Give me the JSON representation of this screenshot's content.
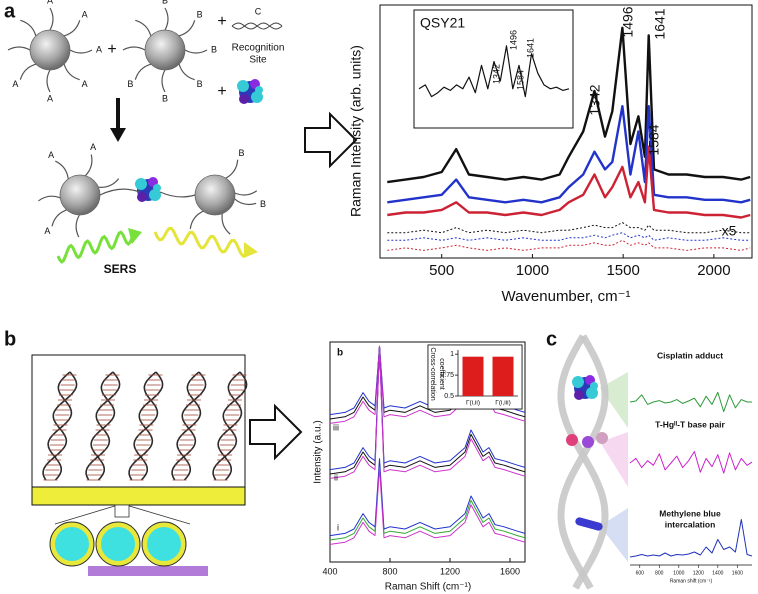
{
  "figure": {
    "panel_labels": [
      "a",
      "b",
      "c"
    ],
    "panel_a_diagram": {
      "particle_a_labels": [
        "A",
        "A",
        "A",
        "A",
        "A",
        "A"
      ],
      "particle_b_labels": [
        "B",
        "B",
        "B",
        "B",
        "B",
        "B"
      ],
      "plus_signs": [
        "+",
        "+",
        "+"
      ],
      "strand_label": "C",
      "recognition_site": [
        "Recognition",
        "Site"
      ],
      "assembled_a_labels": [
        "A",
        "A",
        "A"
      ],
      "assembled_b_labels": [
        "B",
        "B"
      ],
      "sers": "SERS"
    }
  },
  "chart_data": [
    {
      "type": "line",
      "xlabel": "Wavenumber, cm⁻¹",
      "ylabel": "Raman Intensity (arb. units)",
      "x": [
        200,
        300,
        400,
        500,
        580,
        650,
        750,
        850,
        950,
        1050,
        1150,
        1200,
        1280,
        1342,
        1400,
        1440,
        1496,
        1540,
        1584,
        1620,
        1641,
        1670,
        1750,
        1850,
        1950,
        2050,
        2150,
        2200
      ],
      "series": [
        {
          "color": "#111111",
          "values": [
            30,
            31,
            32,
            34,
            43,
            33,
            32,
            31,
            32,
            31,
            33,
            40,
            50,
            66,
            48,
            58,
            91,
            45,
            56,
            40,
            88,
            35,
            33,
            33,
            32,
            32,
            31,
            32
          ]
        },
        {
          "color": "#2233cc",
          "values": [
            22,
            23,
            24,
            25,
            31,
            24,
            23,
            22,
            23,
            22,
            24,
            28,
            33,
            42,
            35,
            38,
            60,
            33,
            50,
            30,
            60,
            25,
            24,
            24,
            23,
            23,
            22,
            23
          ]
        },
        {
          "color": "#cc2233",
          "values": [
            17,
            18,
            18,
            19,
            22,
            18,
            18,
            17,
            18,
            17,
            19,
            22,
            25,
            33,
            24,
            28,
            36,
            24,
            30,
            22,
            44,
            19,
            18,
            18,
            17,
            17,
            16,
            17
          ]
        },
        {
          "color": "#111111",
          "dashed": true,
          "values": [
            10,
            10,
            11,
            10,
            12,
            10,
            11,
            10,
            11,
            10,
            11,
            11,
            12,
            13,
            12,
            12,
            14,
            12,
            12,
            11,
            13,
            11,
            11,
            10,
            10,
            11,
            10,
            10
          ]
        },
        {
          "color": "#2233cc",
          "dashed": true,
          "values": [
            7,
            7,
            8,
            7,
            8,
            7,
            8,
            7,
            8,
            7,
            7,
            8,
            8,
            9,
            8,
            9,
            10,
            8,
            9,
            8,
            9,
            7,
            8,
            7,
            7,
            8,
            7,
            7
          ]
        },
        {
          "color": "#cc2233",
          "dashed": true,
          "values": [
            3,
            4,
            3,
            4,
            5,
            4,
            3,
            4,
            3,
            4,
            4,
            5,
            5,
            6,
            5,
            5,
            7,
            5,
            6,
            5,
            6,
            4,
            4,
            3,
            4,
            4,
            3,
            4
          ]
        }
      ],
      "peak_labels": [
        {
          "text": "1342",
          "color": "#111111"
        },
        {
          "text": "1496",
          "color": "#111111"
        },
        {
          "text": "1584",
          "color": "#111111"
        },
        {
          "text": "1641",
          "color": "#dd2222"
        }
      ],
      "scale_note": "x5",
      "xlim": [
        160,
        2210
      ],
      "ylim": [
        0,
        100
      ],
      "xticks": [
        500,
        1000,
        1500,
        2000
      ]
    },
    {
      "type": "line",
      "title": "QSY21",
      "color": "#111111",
      "values": [
        40,
        45,
        30,
        35,
        42,
        38,
        45,
        40,
        55,
        35,
        70,
        40,
        75,
        50,
        95,
        40,
        70,
        30,
        85,
        60,
        45,
        40,
        42,
        38,
        40
      ],
      "peak_labels": [
        {
          "text": "1342",
          "color": "#111111"
        },
        {
          "text": "1496",
          "color": "#111111"
        },
        {
          "text": "1584",
          "color": "#111111"
        },
        {
          "text": "1641",
          "color": "#dd2222"
        }
      ],
      "ylim": [
        0,
        100
      ]
    },
    {
      "type": "line",
      "xlabel": "Raman Shift (cm⁻¹)",
      "ylabel": "Intensity (a.u.)",
      "inner_label": "b",
      "group_labels": [
        "iii",
        "ii",
        "i"
      ],
      "x": [
        400,
        500,
        560,
        620,
        660,
        700,
        730,
        760,
        800,
        900,
        1000,
        1100,
        1200,
        1300,
        1340,
        1380,
        1420,
        1460,
        1500,
        1560,
        1650,
        1700
      ],
      "series": [
        {
          "color": "#111111",
          "values": [
            65,
            66,
            68,
            75,
            71,
            69,
            98,
            68,
            69,
            68,
            71,
            68,
            69,
            75,
            83,
            78,
            73,
            75,
            70,
            69,
            67,
            66
          ]
        },
        {
          "color": "#2233cc",
          "values": [
            67,
            68,
            70,
            77,
            73,
            71,
            98,
            70,
            71,
            70,
            73,
            70,
            71,
            77,
            85,
            80,
            75,
            77,
            72,
            71,
            69,
            68
          ]
        },
        {
          "color": "#cc33cc",
          "values": [
            63,
            64,
            66,
            73,
            69,
            67,
            98,
            66,
            67,
            66,
            69,
            66,
            67,
            73,
            81,
            76,
            71,
            73,
            68,
            67,
            65,
            64
          ]
        },
        {
          "color": "#111111",
          "values": [
            40,
            41,
            43,
            50,
            46,
            44,
            98,
            43,
            44,
            43,
            46,
            43,
            44,
            50,
            58,
            53,
            48,
            50,
            45,
            44,
            42,
            41
          ]
        },
        {
          "color": "#2233cc",
          "values": [
            42,
            43,
            45,
            52,
            48,
            46,
            98,
            45,
            46,
            45,
            48,
            45,
            46,
            52,
            60,
            55,
            50,
            52,
            47,
            46,
            44,
            43
          ]
        },
        {
          "color": "#cc33cc",
          "values": [
            38,
            39,
            41,
            48,
            44,
            42,
            98,
            41,
            42,
            41,
            44,
            41,
            42,
            48,
            56,
            51,
            46,
            48,
            43,
            42,
            40,
            39
          ]
        },
        {
          "color": "#33aa33",
          "values": [
            10,
            11,
            13,
            20,
            16,
            14,
            45,
            13,
            14,
            13,
            16,
            13,
            14,
            20,
            28,
            23,
            18,
            20,
            15,
            14,
            12,
            11
          ]
        },
        {
          "color": "#2233cc",
          "values": [
            12,
            13,
            15,
            22,
            18,
            16,
            47,
            15,
            16,
            15,
            18,
            15,
            16,
            22,
            30,
            25,
            20,
            22,
            17,
            16,
            14,
            13
          ]
        },
        {
          "color": "#cc33cc",
          "values": [
            8,
            9,
            11,
            18,
            14,
            12,
            43,
            11,
            12,
            11,
            14,
            11,
            12,
            18,
            26,
            21,
            16,
            18,
            13,
            12,
            10,
            9
          ]
        }
      ],
      "xlim": [
        400,
        1700
      ],
      "ylim": [
        0,
        100
      ],
      "xticks": [
        400,
        800,
        1200,
        1600
      ]
    },
    {
      "type": "bar",
      "ylabel": [
        "Cross-correlation",
        "coefficient"
      ],
      "categories": [
        "Γ(i,ii)",
        "Γ(i,iii)"
      ],
      "values": [
        0.97,
        0.97
      ],
      "color": "#dd1c1c",
      "ylim": [
        0.5,
        1.05
      ],
      "yticks": [
        0.5,
        0.75,
        1
      ]
    },
    {
      "type": "line",
      "xlabel": "Raman shift (cm⁻¹)",
      "x": [
        500,
        560,
        620,
        680,
        740,
        800,
        860,
        920,
        980,
        1040,
        1100,
        1160,
        1220,
        1280,
        1340,
        1400,
        1460,
        1520,
        1580,
        1640,
        1700,
        1750
      ],
      "series": [
        {
          "label": [
            "Cisplatin adduct"
          ],
          "color": "#2e9a3a",
          "values": [
            50,
            52,
            65,
            45,
            50,
            53,
            48,
            50,
            55,
            47,
            52,
            58,
            40,
            62,
            45,
            70,
            30,
            65,
            38,
            55,
            50,
            50
          ]
        },
        {
          "label": [
            "T-Hgᴵᴵ-T base pair"
          ],
          "color": "#cc22cc",
          "values": [
            50,
            60,
            40,
            55,
            45,
            70,
            35,
            50,
            65,
            40,
            55,
            75,
            30,
            60,
            42,
            68,
            28,
            72,
            35,
            60,
            45,
            52
          ]
        },
        {
          "label": [
            "Methylene blue",
            "intercalation"
          ],
          "color": "#2233bb",
          "values": [
            10,
            12,
            15,
            12,
            14,
            12,
            18,
            12,
            15,
            14,
            16,
            20,
            14,
            30,
            18,
            45,
            25,
            30,
            20,
            85,
            15,
            12
          ]
        }
      ],
      "xlim": [
        500,
        1750
      ],
      "ylim": [
        0,
        100
      ],
      "xticks": [
        600,
        800,
        1000,
        1200,
        1400,
        1600
      ]
    }
  ]
}
